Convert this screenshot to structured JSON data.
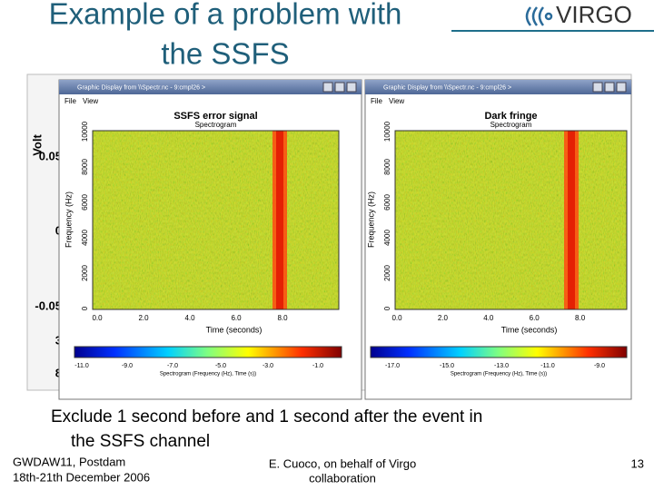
{
  "header": {
    "title_lines": [
      "Example of a problem with",
      "the SSFS"
    ],
    "logo": "VIRGO"
  },
  "background_plot": {
    "y_label": "Volt",
    "labels": [
      "0.05",
      "0",
      "-0.05",
      "3",
      "8"
    ]
  },
  "windows": [
    {
      "title": "Graphic Display from \\\\Spectr.nc - 9:cmpl26 >",
      "menu": [
        "File",
        "View"
      ],
      "plot_title": "SSFS error signal",
      "subtitle": "Spectrogram",
      "y_label": "Frequency (Hz)",
      "x_label": "Time (seconds)",
      "yticks": [
        "0",
        "2000",
        "4000",
        "6000",
        "8000",
        "10000"
      ],
      "xticks": [
        "0.0",
        "2.0",
        "4.0",
        "6.0",
        "8.0"
      ],
      "colorbar_ticks": [
        "-11.0",
        "-9.0",
        "-7.0",
        "-5.0",
        "-3.0",
        "-1.0"
      ],
      "colorbar_label": "Spectrogram (Frequency (Hz), Time (s))"
    },
    {
      "title": "Graphic Display from \\\\Spectr.nc - 9:cmpl26 >",
      "menu": [
        "File",
        "View"
      ],
      "plot_title": "Dark fringe",
      "subtitle": "Spectrogram",
      "y_label": "Frequency (Hz)",
      "x_label": "Time (seconds)",
      "yticks": [
        "0",
        "2000",
        "4000",
        "6000",
        "8000",
        "10000"
      ],
      "xticks": [
        "0.0",
        "2.0",
        "4.0",
        "6.0",
        "8.0"
      ],
      "colorbar_ticks": [
        "-17.0",
        "-15.0",
        "-13.0",
        "-11.0",
        "-9.0"
      ],
      "colorbar_label": "Spectrogram (Frequency (Hz), Time (s))"
    }
  ],
  "caption_lines": [
    "Exclude 1 second before and 1 second after the event in",
    "the SSFS channel"
  ],
  "footer": {
    "left": [
      "GWDAW11,  Postdam",
      "18th-21th December 2006"
    ],
    "center": [
      "E. Cuoco, on behalf of Virgo",
      "collaboration"
    ],
    "page": "13"
  }
}
